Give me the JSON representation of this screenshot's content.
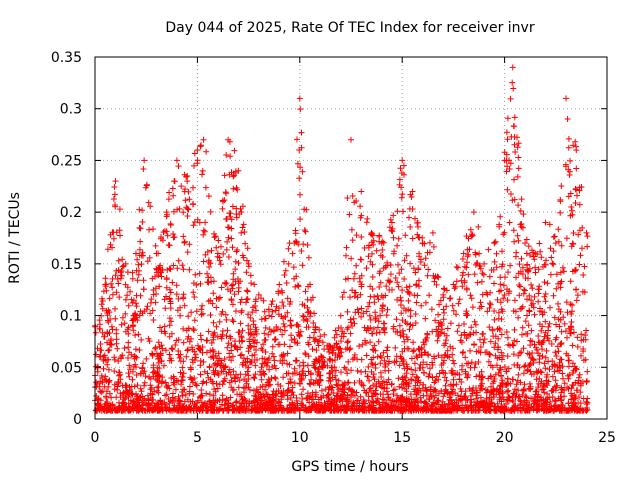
{
  "chart_data": {
    "type": "scatter",
    "title": "Day 044 of 2025, Rate Of TEC Index for receiver invr",
    "xlabel": "GPS time / hours",
    "ylabel": "ROTI / TECUs",
    "xlim": [
      0,
      25
    ],
    "ylim": [
      0,
      0.35
    ],
    "xticks": [
      0,
      5,
      10,
      15,
      20,
      25
    ],
    "xtick_labels": [
      "0",
      "5",
      "10",
      "15",
      "20",
      "25"
    ],
    "yticks": [
      0,
      0.05,
      0.1,
      0.15,
      0.2,
      0.25,
      0.3,
      0.35
    ],
    "ytick_labels": [
      "0",
      "0.05",
      "0.1",
      "0.15",
      "0.2",
      "0.25",
      "0.3",
      "0.35"
    ],
    "grid": true,
    "marker": "+",
    "color": "#ff0000",
    "series": [
      {
        "name": "ROTI",
        "note": "Dense point cloud of several thousand samples; representative envelope values (hour, upper ROTI) below",
        "envelope": [
          [
            0.0,
            0.09
          ],
          [
            0.5,
            0.13
          ],
          [
            1.0,
            0.23
          ],
          [
            1.5,
            0.15
          ],
          [
            2.0,
            0.16
          ],
          [
            2.4,
            0.25
          ],
          [
            3.0,
            0.16
          ],
          [
            3.5,
            0.2
          ],
          [
            4.0,
            0.25
          ],
          [
            4.5,
            0.23
          ],
          [
            5.0,
            0.26
          ],
          [
            5.3,
            0.27
          ],
          [
            6.0,
            0.16
          ],
          [
            6.5,
            0.27
          ],
          [
            7.0,
            0.24
          ],
          [
            7.5,
            0.15
          ],
          [
            8.0,
            0.12
          ],
          [
            8.5,
            0.1
          ],
          [
            9.0,
            0.13
          ],
          [
            9.5,
            0.17
          ],
          [
            10.0,
            0.31
          ],
          [
            10.5,
            0.13
          ],
          [
            11.0,
            0.08
          ],
          [
            11.5,
            0.07
          ],
          [
            12.0,
            0.1
          ],
          [
            12.5,
            0.27
          ],
          [
            13.0,
            0.22
          ],
          [
            13.5,
            0.18
          ],
          [
            14.0,
            0.17
          ],
          [
            14.5,
            0.19
          ],
          [
            15.0,
            0.25
          ],
          [
            15.5,
            0.22
          ],
          [
            16.0,
            0.17
          ],
          [
            16.5,
            0.18
          ],
          [
            17.0,
            0.12
          ],
          [
            17.5,
            0.13
          ],
          [
            18.0,
            0.16
          ],
          [
            18.5,
            0.2
          ],
          [
            19.0,
            0.15
          ],
          [
            19.5,
            0.17
          ],
          [
            20.0,
            0.25
          ],
          [
            20.4,
            0.34
          ],
          [
            21.0,
            0.17
          ],
          [
            21.5,
            0.16
          ],
          [
            22.0,
            0.19
          ],
          [
            22.5,
            0.17
          ],
          [
            23.0,
            0.31
          ],
          [
            23.5,
            0.26
          ],
          [
            24.0,
            0.18
          ]
        ]
      }
    ]
  }
}
